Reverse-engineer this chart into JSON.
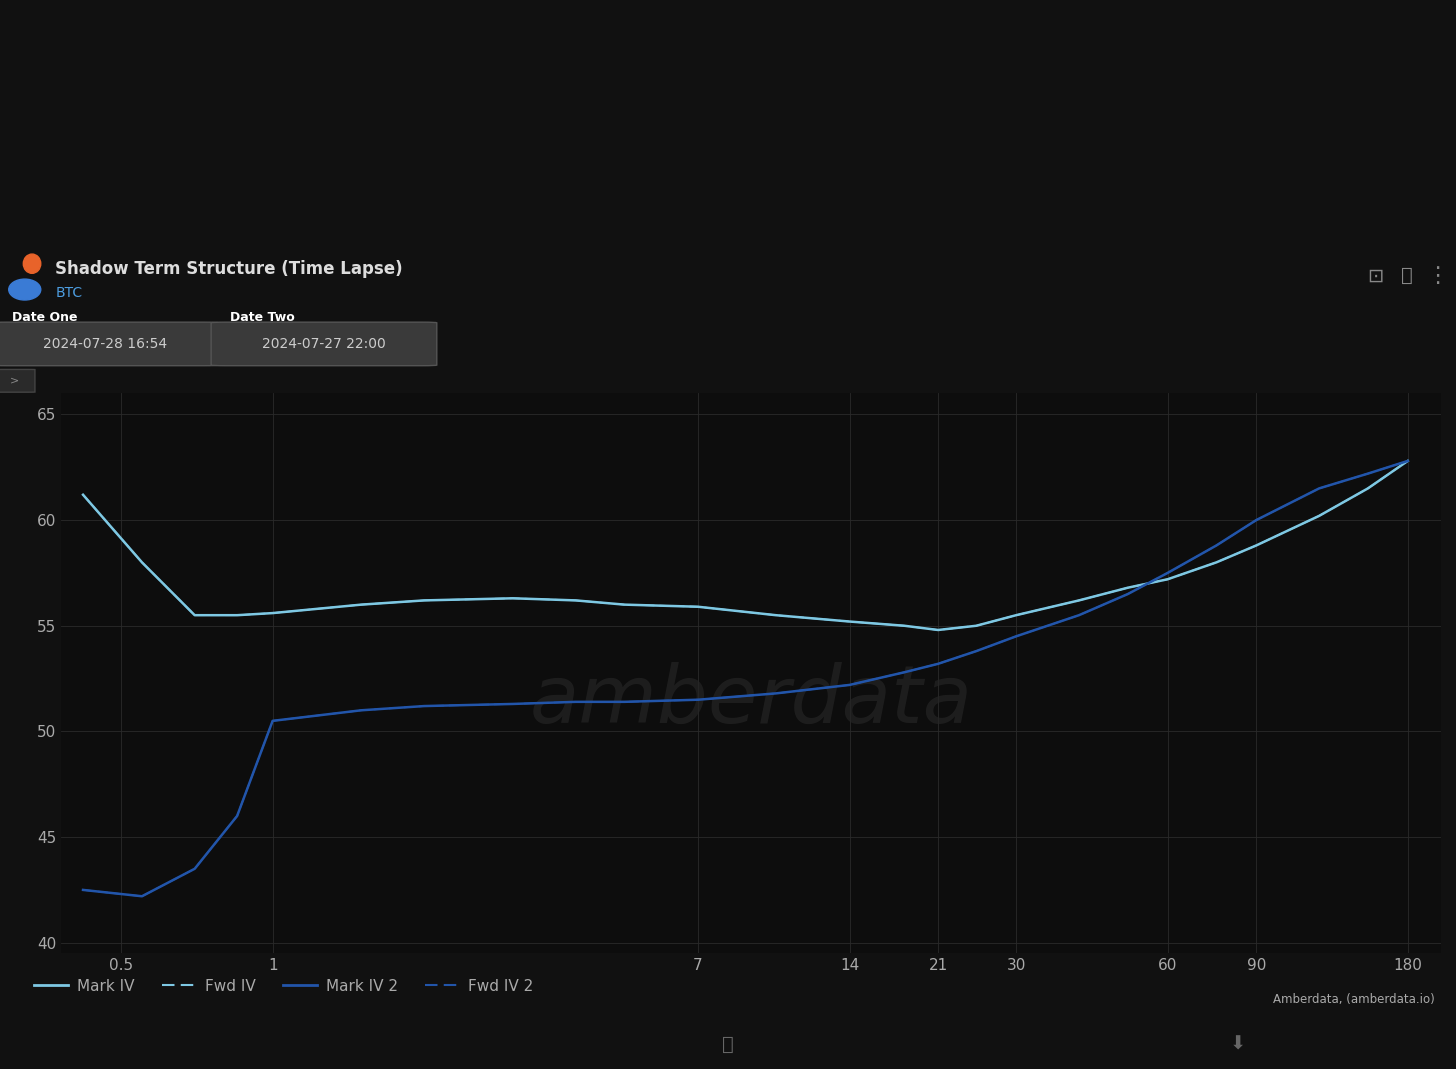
{
  "title": "Shadow Term Structure (Time Lapse)",
  "subtitle": "BTC",
  "date_one_label": "Date One",
  "date_one_value": "2024-07-28 16:54",
  "date_two_label": "Date Two",
  "date_two_value": "2024-07-27 22:00",
  "background_color": "#111111",
  "panel_bg_color": "#0d0d0d",
  "topbar_color": "#4a4a4a",
  "text_color": "#aaaaaa",
  "grid_color": "#2a2a2a",
  "ylim": [
    39.5,
    66
  ],
  "yticks": [
    40,
    45,
    50,
    55,
    60,
    65
  ],
  "xtick_labels": [
    "0.5",
    "1",
    "7",
    "14",
    "21",
    "30",
    "60",
    "90",
    "180"
  ],
  "xtick_positions": [
    0.5,
    1,
    7,
    14,
    21,
    30,
    60,
    90,
    180
  ],
  "mark_iv_color": "#7ec8e3",
  "mark_iv2_color": "#2255aa",
  "fwd_iv_color": "#7ec8e3",
  "fwd_iv2_color": "#2255aa",
  "watermark_text": "amberdata",
  "credit_text": "Amberdata, (amberdata.io)",
  "legend_items": [
    "Mark IV",
    "Fwd IV",
    "Mark IV 2",
    "Fwd IV 2"
  ],
  "mark_iv_x": [
    0.42,
    0.55,
    0.7,
    0.85,
    1.0,
    1.5,
    2,
    3,
    4,
    5,
    7,
    10,
    14,
    18,
    21,
    25,
    30,
    40,
    50,
    60,
    75,
    90,
    120,
    150,
    180
  ],
  "mark_iv_y": [
    61.2,
    58.0,
    55.5,
    55.5,
    55.6,
    56.0,
    56.2,
    56.3,
    56.2,
    56.0,
    55.9,
    55.5,
    55.2,
    55.0,
    54.8,
    55.0,
    55.5,
    56.2,
    56.8,
    57.2,
    58.0,
    58.8,
    60.2,
    61.5,
    62.8
  ],
  "fwd_iv_x": [
    0.42,
    0.55,
    0.7,
    0.85,
    1.0,
    1.5,
    2,
    3,
    4,
    5,
    7,
    10,
    14,
    18,
    21,
    25,
    30,
    40,
    50,
    60,
    75,
    90,
    120,
    150,
    180
  ],
  "fwd_iv_y": [
    61.2,
    58.0,
    55.5,
    55.5,
    55.6,
    56.0,
    56.2,
    56.3,
    56.2,
    56.0,
    55.9,
    55.5,
    55.2,
    55.0,
    54.8,
    55.0,
    55.5,
    56.2,
    56.8,
    57.2,
    58.0,
    58.8,
    60.2,
    61.5,
    62.8
  ],
  "mark_iv2_x": [
    0.42,
    0.55,
    0.7,
    0.85,
    1.0,
    1.5,
    2,
    3,
    4,
    5,
    7,
    10,
    14,
    18,
    21,
    25,
    30,
    40,
    50,
    60,
    75,
    90,
    120,
    150,
    180
  ],
  "mark_iv2_y": [
    42.5,
    42.2,
    43.5,
    46.0,
    50.5,
    51.0,
    51.2,
    51.3,
    51.4,
    51.4,
    51.5,
    51.8,
    52.2,
    52.8,
    53.2,
    53.8,
    54.5,
    55.5,
    56.5,
    57.5,
    58.8,
    60.0,
    61.5,
    62.2,
    62.8
  ],
  "fwd_iv2_x": [
    0.42,
    0.55,
    0.7,
    0.85,
    1.0,
    1.5,
    2,
    3,
    4,
    5,
    7,
    10,
    14,
    18,
    21,
    25,
    30,
    40,
    50,
    60,
    75,
    90,
    120,
    150,
    180
  ],
  "fwd_iv2_y": [
    42.5,
    42.2,
    43.5,
    46.0,
    50.5,
    51.0,
    51.2,
    51.3,
    51.4,
    51.4,
    51.5,
    51.8,
    52.2,
    52.8,
    53.2,
    53.8,
    54.5,
    55.5,
    56.5,
    57.5,
    58.8,
    60.0,
    61.5,
    62.2,
    62.8
  ]
}
